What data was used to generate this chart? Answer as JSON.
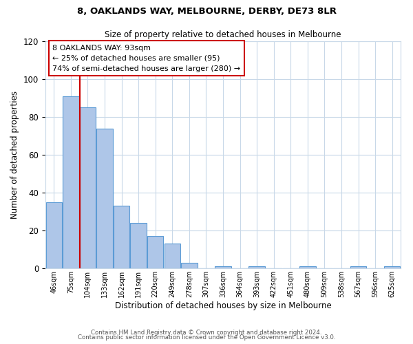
{
  "title": "8, OAKLANDS WAY, MELBOURNE, DERBY, DE73 8LR",
  "subtitle": "Size of property relative to detached houses in Melbourne",
  "xlabel": "Distribution of detached houses by size in Melbourne",
  "ylabel": "Number of detached properties",
  "bar_labels": [
    "46sqm",
    "75sqm",
    "104sqm",
    "133sqm",
    "162sqm",
    "191sqm",
    "220sqm",
    "249sqm",
    "278sqm",
    "307sqm",
    "336sqm",
    "364sqm",
    "393sqm",
    "422sqm",
    "451sqm",
    "480sqm",
    "509sqm",
    "538sqm",
    "567sqm",
    "596sqm",
    "625sqm"
  ],
  "bar_values": [
    35,
    91,
    85,
    74,
    33,
    24,
    17,
    13,
    3,
    0,
    1,
    0,
    1,
    0,
    0,
    1,
    0,
    0,
    1,
    0,
    1
  ],
  "bar_color": "#aec6e8",
  "bar_edge_color": "#5b9bd5",
  "annotation_title": "8 OAKLANDS WAY: 93sqm",
  "annotation_line1": "← 25% of detached houses are smaller (95)",
  "annotation_line2": "74% of semi-detached houses are larger (280) →",
  "annotation_box_color": "#ffffff",
  "annotation_box_edge_color": "#cc0000",
  "red_line_color": "#cc0000",
  "ylim": [
    0,
    120
  ],
  "yticks": [
    0,
    20,
    40,
    60,
    80,
    100,
    120
  ],
  "footer_line1": "Contains HM Land Registry data © Crown copyright and database right 2024.",
  "footer_line2": "Contains public sector information licensed under the Open Government Licence v3.0.",
  "background_color": "#ffffff",
  "grid_color": "#c8d8e8"
}
